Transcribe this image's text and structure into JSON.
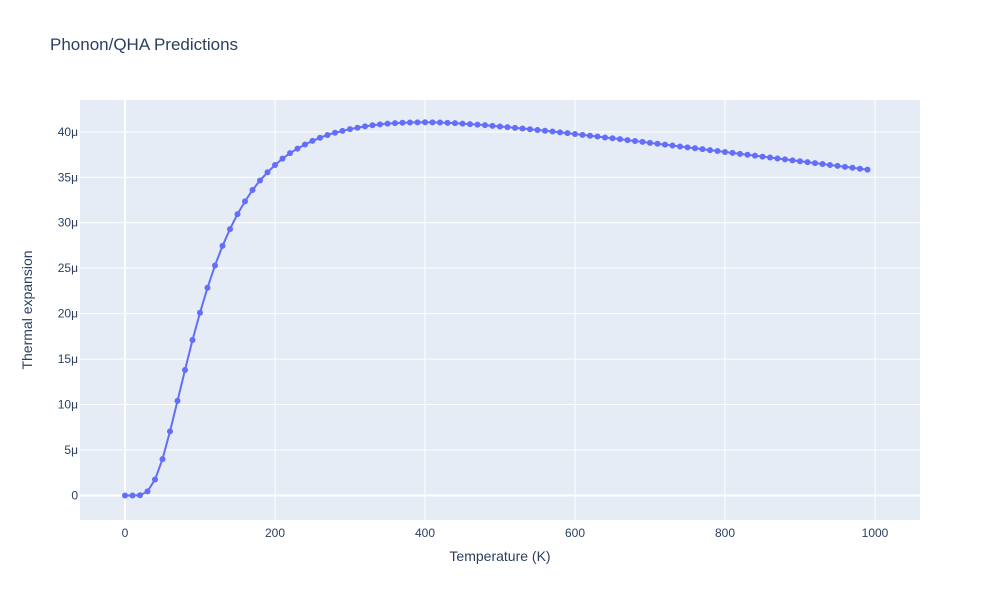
{
  "chart_data": {
    "type": "line",
    "title": "Phonon/QHA Predictions",
    "xlabel": "Temperature (K)",
    "ylabel": "Thermal expansion",
    "xlim": [
      -60,
      1060
    ],
    "ylim": [
      -2.7e-06,
      4.35e-05
    ],
    "x_ticks": [
      0,
      200,
      400,
      600,
      800,
      1000
    ],
    "x_tick_labels": [
      "0",
      "200",
      "400",
      "600",
      "800",
      "1000"
    ],
    "y_ticks": [
      0,
      5e-06,
      1e-05,
      1.5e-05,
      2e-05,
      2.5e-05,
      3e-05,
      3.5e-05,
      4e-05
    ],
    "y_tick_labels": [
      "0",
      "5μ",
      "10μ",
      "15μ",
      "20μ",
      "25μ",
      "30μ",
      "35μ",
      "40μ"
    ],
    "grid": true,
    "colors": {
      "plot_bg": "#e5ecf6",
      "grid": "#ffffff",
      "line": "#636efa",
      "text": "#2a3f5f"
    },
    "series": [
      {
        "name": "",
        "x": [
          0,
          10,
          20,
          30,
          40,
          50,
          60,
          70,
          80,
          90,
          100,
          110,
          120,
          130,
          140,
          150,
          160,
          170,
          180,
          190,
          200,
          210,
          220,
          230,
          240,
          250,
          260,
          270,
          280,
          290,
          300,
          310,
          320,
          330,
          340,
          350,
          360,
          370,
          380,
          390,
          400,
          410,
          420,
          430,
          440,
          450,
          460,
          470,
          480,
          490,
          500,
          510,
          520,
          530,
          540,
          550,
          560,
          570,
          580,
          590,
          600,
          610,
          620,
          630,
          640,
          650,
          660,
          670,
          680,
          690,
          700,
          710,
          720,
          730,
          740,
          750,
          760,
          770,
          780,
          790,
          800,
          810,
          820,
          830,
          840,
          850,
          860,
          870,
          880,
          890,
          900,
          910,
          920,
          930,
          940,
          950,
          960,
          970,
          980,
          990
        ],
        "y": [
          0,
          0,
          2e-08,
          4.5e-07,
          1.75e-06,
          4e-06,
          7.05e-06,
          1.04e-05,
          1.38e-05,
          1.71e-05,
          2.01e-05,
          2.285e-05,
          2.53e-05,
          2.745e-05,
          2.93e-05,
          3.095e-05,
          3.235e-05,
          3.36e-05,
          3.465e-05,
          3.555e-05,
          3.635e-05,
          3.705e-05,
          3.765e-05,
          3.815e-05,
          3.86e-05,
          3.9e-05,
          3.935e-05,
          3.965e-05,
          3.99e-05,
          4.01e-05,
          4.03e-05,
          4.045e-05,
          4.06e-05,
          4.072e-05,
          4.082e-05,
          4.09e-05,
          4.096e-05,
          4.1e-05,
          4.102e-05,
          4.104e-05,
          4.105e-05,
          4.104e-05,
          4.102e-05,
          4.099e-05,
          4.095e-05,
          4.09e-05,
          4.085e-05,
          4.079e-05,
          4.073e-05,
          4.066e-05,
          4.059e-05,
          4.052e-05,
          4.044e-05,
          4.036e-05,
          4.028e-05,
          4.02e-05,
          4.012e-05,
          4.003e-05,
          3.994e-05,
          3.985e-05,
          3.976e-05,
          3.967e-05,
          3.957e-05,
          3.948e-05,
          3.938e-05,
          3.929e-05,
          3.919e-05,
          3.909e-05,
          3.899e-05,
          3.889e-05,
          3.879e-05,
          3.869e-05,
          3.859e-05,
          3.849e-05,
          3.839e-05,
          3.829e-05,
          3.819e-05,
          3.809e-05,
          3.799e-05,
          3.789e-05,
          3.778e-05,
          3.768e-05,
          3.758e-05,
          3.748e-05,
          3.738e-05,
          3.727e-05,
          3.717e-05,
          3.707e-05,
          3.697e-05,
          3.686e-05,
          3.676e-05,
          3.666e-05,
          3.656e-05,
          3.646e-05,
          3.635e-05,
          3.625e-05,
          3.615e-05,
          3.605e-05,
          3.594e-05,
          3.584e-05
        ]
      }
    ]
  }
}
